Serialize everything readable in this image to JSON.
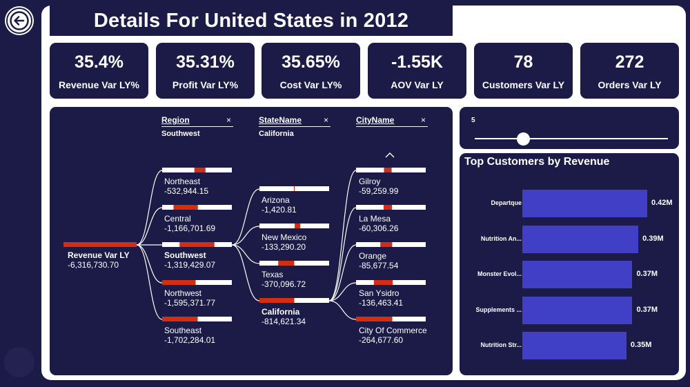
{
  "title": "Details For United States in 2012",
  "back_icon": "arrow-left-circle-icon",
  "kpis": [
    {
      "value": "35.4%",
      "label": "Revenue Var LY%"
    },
    {
      "value": "35.31%",
      "label": "Profit Var LY%"
    },
    {
      "value": "35.65%",
      "label": "Cost Var LY%"
    },
    {
      "value": "-1.55K",
      "label": "AOV Var LY"
    },
    {
      "value": "78",
      "label": "Customers Var LY"
    },
    {
      "value": "272",
      "label": "Orders Var LY"
    }
  ],
  "tree": {
    "root": {
      "name": "Revenue Var LY",
      "value": "-6,316,730.70"
    },
    "levels": [
      {
        "header": "Region",
        "selected": "Southwest",
        "close": "×"
      },
      {
        "header": "StateName",
        "selected": "California",
        "close": "×"
      },
      {
        "header": "CityName",
        "selected": "",
        "close": "×"
      }
    ],
    "regions": [
      {
        "name": "Northeast",
        "value": "-532,944.15",
        "fill": 0.16
      },
      {
        "name": "Central",
        "value": "-1,166,701.69",
        "fill": 0.35
      },
      {
        "name": "Southwest",
        "value": "-1,319,429.07",
        "fill": 0.5,
        "selected": true
      },
      {
        "name": "Northwest",
        "value": "-1,595,371.77",
        "fill": 0.48
      },
      {
        "name": "Southeast",
        "value": "-1,702,284.01",
        "fill": 0.51
      }
    ],
    "states": [
      {
        "name": "Arizona",
        "value": "-1,420.81",
        "fill": 0.01
      },
      {
        "name": "New Mexico",
        "value": "-133,290.20",
        "fill": 0.08
      },
      {
        "name": "Texas",
        "value": "-370,096.72",
        "fill": 0.23
      },
      {
        "name": "California",
        "value": "-814,621.34",
        "fill": 0.5,
        "selected": true
      }
    ],
    "cities": [
      {
        "name": "Gilroy",
        "value": "-59,259.99",
        "fill": 0.11
      },
      {
        "name": "La Mesa",
        "value": "-60,306.26",
        "fill": 0.12
      },
      {
        "name": "Orange",
        "value": "-85,677.54",
        "fill": 0.17
      },
      {
        "name": "San Ysidro",
        "value": "-136,463.41",
        "fill": 0.27
      },
      {
        "name": "City Of Commerce",
        "value": "-264,677.60",
        "fill": 0.52
      }
    ],
    "scroll_up_icon": "chevron-up-icon"
  },
  "slider": {
    "value": "5",
    "level": 0.25
  },
  "top_customers": {
    "title": "Top Customers by Revenue",
    "items": [
      {
        "name": "Departque",
        "value": 0.42,
        "label": "0.42M"
      },
      {
        "name": "Nutrition An...",
        "value": 0.39,
        "label": "0.39M"
      },
      {
        "name": "Monster Evol...",
        "value": 0.37,
        "label": "0.37M"
      },
      {
        "name": "Supplements ...",
        "value": 0.37,
        "label": "0.37M"
      },
      {
        "name": "Nutrition Str...",
        "value": 0.35,
        "label": "0.35M"
      }
    ]
  },
  "colors": {
    "navy": "#1c1b48",
    "canvas": "#ffffff",
    "bar_red": "#d42e12",
    "bar_blue": "#4040c7",
    "bar_track": "#ffffff"
  }
}
